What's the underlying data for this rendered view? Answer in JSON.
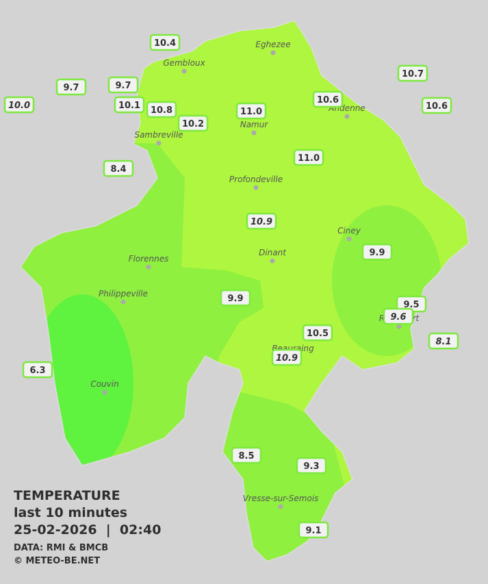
{
  "title": "TEMPERATURE",
  "subtitle": "last 10 minutes",
  "datetime": "25-02-2026  |  02:40",
  "source": "DATA: RMI & BMCB",
  "credit": "© METEO-BE.NET",
  "cities": [
    "Eghezee",
    "Gembloux",
    "Andenne",
    "Namur",
    "Sambreville",
    "Profondeville",
    "Ciney",
    "Florennes",
    "Dinant",
    "Philippeville",
    "Rochefort",
    "Beauraing",
    "Couvin",
    "Vresse-sur-Semois"
  ],
  "stations": [
    "10.4",
    "9.7",
    "9.7",
    "10.7",
    "10.0",
    "10.1",
    "10.8",
    "10.6",
    "11.0",
    "10.6",
    "10.2",
    "8.4",
    "11.0",
    "10.9",
    "9.9",
    "9.9",
    "9.5",
    "9.6",
    "10.5",
    "8.1",
    "10.9",
    "6.3",
    "8.5",
    "9.3",
    "9.1"
  ]
}
